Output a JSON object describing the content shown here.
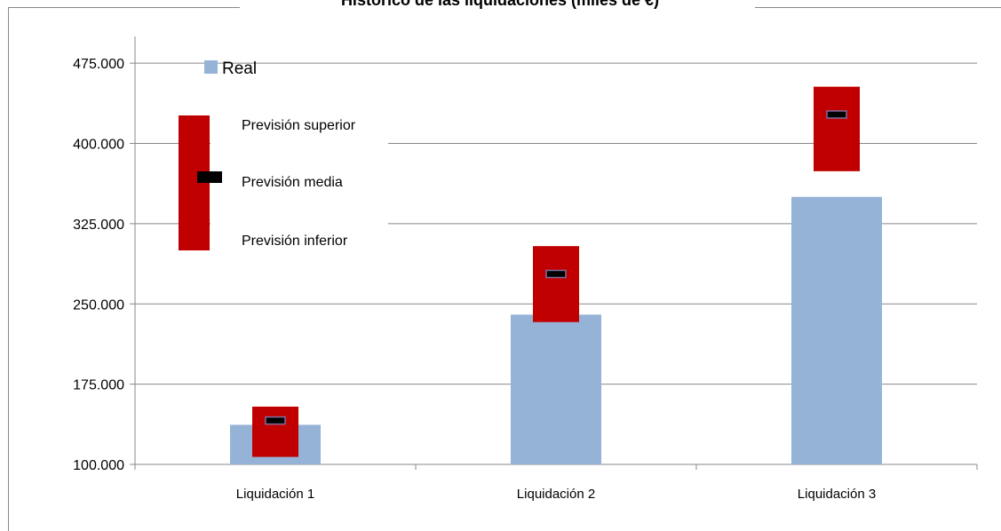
{
  "chart_data": {
    "type": "range_bar",
    "title": "Histórico de las liquidaciones (miles de €)",
    "categories": [
      "Liquidación 1",
      "Liquidación 2",
      "Liquidación 3"
    ],
    "series": [
      {
        "name": "Real",
        "color": "#95b3d7",
        "values": [
          137000,
          240000,
          350000
        ]
      },
      {
        "name": "Previsión superior",
        "color": "#c00000",
        "values": [
          154000,
          304000,
          453000
        ]
      },
      {
        "name": "Previsión media",
        "color": "#000000",
        "values": [
          141000,
          278000,
          427000
        ]
      },
      {
        "name": "Previsión inferior",
        "color": "#c00000",
        "values": [
          107000,
          233000,
          374000
        ]
      }
    ],
    "ylim": [
      100000,
      500000
    ],
    "yticks": [
      {
        "value": 100000,
        "label": "100.000"
      },
      {
        "value": 175000,
        "label": "175.000"
      },
      {
        "value": 250000,
        "label": "250.000"
      },
      {
        "value": 325000,
        "label": "325.000"
      },
      {
        "value": 400000,
        "label": "400.000"
      },
      {
        "value": 475000,
        "label": "475.000"
      }
    ],
    "grid": true
  }
}
